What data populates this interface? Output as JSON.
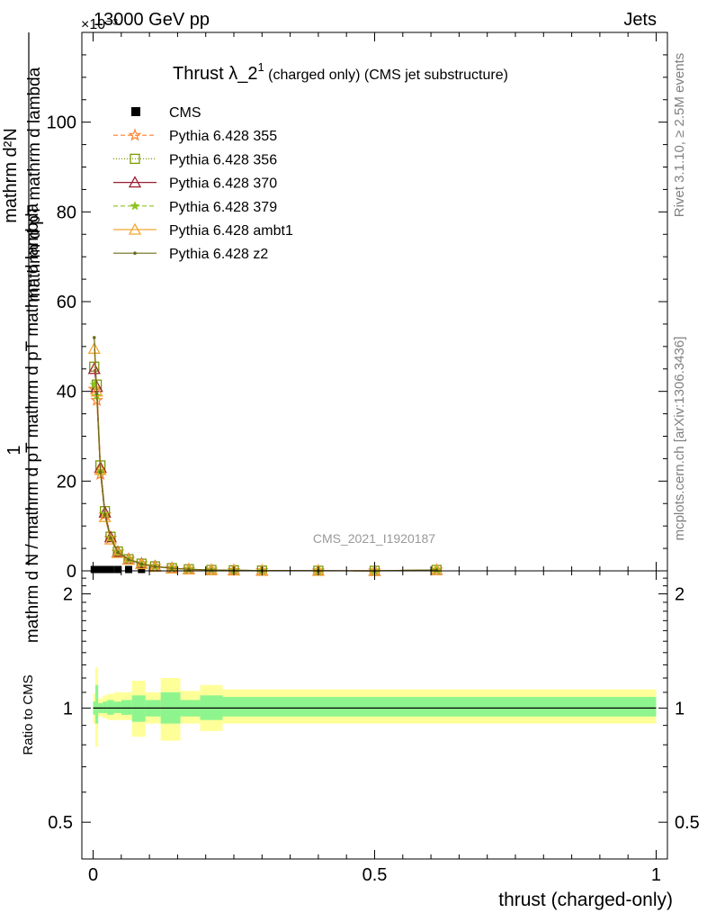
{
  "header": {
    "left": "13000 GeV pp",
    "right": "Jets",
    "exponent_label": "×10⁻³"
  },
  "title": {
    "main": "Thrust λ_2",
    "sup": "1",
    "sub": " (charged only) (CMS jet substructure)"
  },
  "analysis_label": "CMS_2021_I1920187",
  "side_labels": {
    "rivet": "Rivet 3.1.10, ≥ 2.5M events",
    "mcplots": "mcplots.cern.ch [arXiv:1306.3436]"
  },
  "axis_labels": {
    "y_main_numerator": "mathrm d²N",
    "y_main_numerator_prefix": "1",
    "y_main_denominator_top": "mathrm d pT mathrm d lambda",
    "y_main_denominator": "mathrm d N / mathrm d pT mathrm d pT mathrm d lambda",
    "y_ratio": "Ratio to CMS",
    "x": "thrust (charged-only)"
  },
  "colors": {
    "band_inner": "#8ef58e",
    "band_outer": "#ffff99",
    "cms": "#000000",
    "p355": "#ff7f2a",
    "p356": "#7a9a01",
    "p370": "#9b1c31",
    "p379": "#8dc21f",
    "ambt1": "#f2a630",
    "z2": "#6b6b1a"
  },
  "chart_data": [
    {
      "type": "line",
      "panel": "main",
      "xlim": [
        -0.02,
        1.02
      ],
      "ylim": [
        0,
        120
      ],
      "y_scale_note": "values ×10⁻³",
      "yticks": [
        0,
        20,
        40,
        60,
        80,
        100
      ],
      "x": [
        0.002,
        0.0065,
        0.013,
        0.021,
        0.031,
        0.044,
        0.063,
        0.086,
        0.11,
        0.14,
        0.17,
        0.21,
        0.25,
        0.3,
        0.4,
        0.5,
        0.61
      ],
      "series": [
        {
          "name": "CMS",
          "key": "cms",
          "marker": "square",
          "values": [
            0.3,
            0.3,
            0.3,
            0.3,
            0.3,
            0.3,
            0.3,
            0.3,
            0.3,
            0.3,
            0.3,
            0.3,
            0.3,
            0.3,
            0.3,
            0.3,
            0.3
          ]
        },
        {
          "name": "Pythia 6.428 355",
          "key": "p355",
          "marker": "star",
          "dash": "5,3",
          "values": [
            40.5,
            38.0,
            21.5,
            12.5,
            7.3,
            4.2,
            2.6,
            1.6,
            1.0,
            0.6,
            0.35,
            0.2,
            0.12,
            0.06,
            0.02,
            0.01,
            0.2
          ]
        },
        {
          "name": "Pythia 6.428 356",
          "key": "p356",
          "marker": "square-open",
          "dash": "1,2",
          "values": [
            45.5,
            41.5,
            23.5,
            13.3,
            7.6,
            4.3,
            2.6,
            1.6,
            1.0,
            0.6,
            0.35,
            0.2,
            0.12,
            0.06,
            0.02,
            0.01,
            0.2
          ]
        },
        {
          "name": "Pythia 6.428 370",
          "key": "p370",
          "marker": "triangle-open",
          "dash": "",
          "values": [
            45.0,
            41.0,
            23.0,
            13.0,
            7.5,
            4.2,
            2.6,
            1.6,
            1.0,
            0.6,
            0.35,
            0.2,
            0.12,
            0.06,
            0.02,
            0.01,
            0.2
          ]
        },
        {
          "name": "Pythia 6.428 379",
          "key": "p379",
          "marker": "star-small",
          "dash": "5,3",
          "values": [
            41.5,
            39.0,
            22.0,
            12.7,
            7.4,
            4.2,
            2.6,
            1.6,
            1.0,
            0.6,
            0.35,
            0.2,
            0.12,
            0.06,
            0.02,
            0.01,
            0.2
          ]
        },
        {
          "name": "Pythia 6.428 ambt1",
          "key": "ambt1",
          "marker": "triangle-open",
          "dash": "",
          "values": [
            49.5,
            40.0,
            22.5,
            12.0,
            7.0,
            4.0,
            2.5,
            1.5,
            0.9,
            0.55,
            0.33,
            0.19,
            0.11,
            0.06,
            0.02,
            0.01,
            0.2
          ]
        },
        {
          "name": "Pythia 6.428 z2",
          "key": "z2",
          "marker": "dot",
          "dash": "",
          "values": [
            52.0,
            39.5,
            22.0,
            12.5,
            7.3,
            4.1,
            2.5,
            1.5,
            0.95,
            0.57,
            0.34,
            0.2,
            0.12,
            0.06,
            0.02,
            0.01,
            0.2
          ]
        }
      ]
    },
    {
      "type": "area",
      "panel": "ratio",
      "xlim": [
        -0.02,
        1.02
      ],
      "ylim": [
        0.4,
        2.3
      ],
      "yticks": [
        0.5,
        1,
        2
      ],
      "xticks": [
        0,
        0.5,
        1
      ],
      "bins": [
        {
          "x0": 0.0,
          "x1": 0.004,
          "in_lo": 0.96,
          "in_hi": 1.04,
          "out_lo": 0.91,
          "out_hi": 1.09
        },
        {
          "x0": 0.004,
          "x1": 0.009,
          "in_lo": 0.91,
          "in_hi": 1.15,
          "out_lo": 0.79,
          "out_hi": 1.28
        },
        {
          "x0": 0.009,
          "x1": 0.017,
          "in_lo": 0.97,
          "in_hi": 1.03,
          "out_lo": 0.95,
          "out_hi": 1.06
        },
        {
          "x0": 0.017,
          "x1": 0.025,
          "in_lo": 0.97,
          "in_hi": 1.04,
          "out_lo": 0.94,
          "out_hi": 1.08
        },
        {
          "x0": 0.025,
          "x1": 0.037,
          "in_lo": 0.96,
          "in_hi": 1.05,
          "out_lo": 0.93,
          "out_hi": 1.09
        },
        {
          "x0": 0.037,
          "x1": 0.05,
          "in_lo": 0.97,
          "in_hi": 1.04,
          "out_lo": 0.93,
          "out_hi": 1.1
        },
        {
          "x0": 0.05,
          "x1": 0.069,
          "in_lo": 0.96,
          "in_hi": 1.05,
          "out_lo": 0.93,
          "out_hi": 1.1
        },
        {
          "x0": 0.069,
          "x1": 0.093,
          "in_lo": 0.92,
          "in_hi": 1.08,
          "out_lo": 0.84,
          "out_hi": 1.18
        },
        {
          "x0": 0.093,
          "x1": 0.12,
          "in_lo": 0.95,
          "in_hi": 1.05,
          "out_lo": 0.91,
          "out_hi": 1.1
        },
        {
          "x0": 0.12,
          "x1": 0.155,
          "in_lo": 0.91,
          "in_hi": 1.1,
          "out_lo": 0.82,
          "out_hi": 1.2
        },
        {
          "x0": 0.155,
          "x1": 0.19,
          "in_lo": 0.95,
          "in_hi": 1.05,
          "out_lo": 0.91,
          "out_hi": 1.11
        },
        {
          "x0": 0.19,
          "x1": 0.23,
          "in_lo": 0.93,
          "in_hi": 1.08,
          "out_lo": 0.87,
          "out_hi": 1.15
        },
        {
          "x0": 0.23,
          "x1": 1.0,
          "in_lo": 0.95,
          "in_hi": 1.07,
          "out_lo": 0.91,
          "out_hi": 1.12
        }
      ]
    }
  ]
}
